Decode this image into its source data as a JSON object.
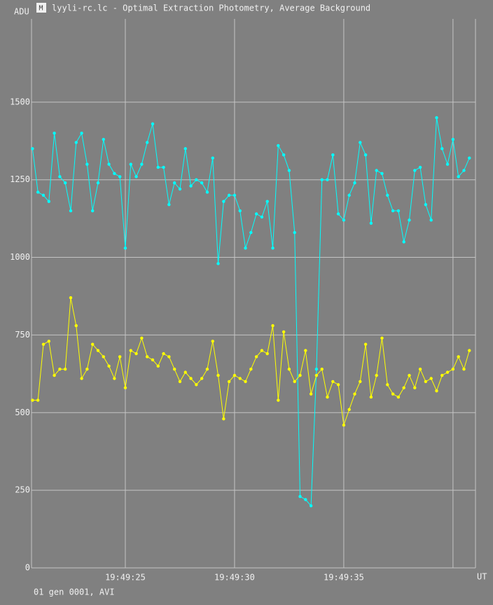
{
  "chart_data": {
    "type": "line",
    "title": "lyyli-rc.lc - Optimal Extraction Photometry, Average Background",
    "y_label": "ADU",
    "x_label": "UT",
    "footer": "01 gen 0001, AVI",
    "x": [
      20.75,
      21,
      21.25,
      21.5,
      21.75,
      22,
      22.25,
      22.5,
      22.75,
      23,
      23.25,
      23.5,
      23.75,
      24,
      24.25,
      24.5,
      24.75,
      25,
      25.25,
      25.5,
      25.75,
      26,
      26.25,
      26.5,
      26.75,
      27,
      27.25,
      27.5,
      27.75,
      28,
      28.25,
      28.5,
      28.75,
      29,
      29.25,
      29.5,
      29.75,
      30,
      30.25,
      30.5,
      30.75,
      31,
      31.25,
      31.5,
      31.75,
      32,
      32.25,
      32.5,
      32.75,
      33,
      33.25,
      33.5,
      33.75,
      34,
      34.25,
      34.5,
      34.75,
      35,
      35.25,
      35.5,
      35.75,
      36,
      36.25,
      36.5,
      36.75,
      37,
      37.25,
      37.5,
      37.75,
      38,
      38.25,
      38.5,
      38.75,
      39,
      39.25,
      39.5,
      39.75,
      40,
      40.25,
      40.5,
      40.75
    ],
    "series": [
      {
        "name": "cyan",
        "color": "#00ffff",
        "values": [
          1350,
          1210,
          1200,
          1180,
          1400,
          1260,
          1240,
          1150,
          1370,
          1400,
          1300,
          1150,
          1240,
          1380,
          1300,
          1270,
          1260,
          1030,
          1300,
          1260,
          1300,
          1370,
          1430,
          1290,
          1290,
          1170,
          1240,
          1220,
          1350,
          1230,
          1250,
          1240,
          1210,
          1320,
          980,
          1180,
          1200,
          1200,
          1150,
          1030,
          1080,
          1140,
          1130,
          1180,
          1030,
          1360,
          1330,
          1280,
          1080,
          230,
          220,
          200,
          640,
          1250,
          1250,
          1330,
          1140,
          1120,
          1200,
          1240,
          1370,
          1330,
          1110,
          1280,
          1270,
          1200,
          1150,
          1150,
          1050,
          1120,
          1280,
          1290,
          1170,
          1120,
          1450,
          1350,
          1300,
          1380,
          1260,
          1280,
          1320
        ]
      },
      {
        "name": "yellow",
        "color": "#ffff00",
        "values": [
          540,
          540,
          720,
          730,
          620,
          640,
          640,
          870,
          780,
          610,
          640,
          720,
          700,
          680,
          650,
          610,
          680,
          580,
          700,
          690,
          740,
          680,
          670,
          650,
          690,
          680,
          640,
          600,
          630,
          610,
          590,
          610,
          640,
          730,
          620,
          480,
          600,
          620,
          610,
          600,
          640,
          680,
          700,
          690,
          780,
          540,
          760,
          640,
          600,
          620,
          700,
          560,
          620,
          640,
          550,
          600,
          590,
          460,
          510,
          560,
          600,
          720,
          550,
          620,
          740,
          590,
          560,
          550,
          580,
          620,
          580,
          640,
          600,
          610,
          570,
          620,
          630,
          640,
          680,
          640,
          700
        ]
      }
    ],
    "xlim": [
      20.705,
      41.03
    ],
    "xticks": [
      {
        "value": 25,
        "label": "19:49:25"
      },
      {
        "value": 30,
        "label": "19:49:30"
      },
      {
        "value": 35,
        "label": "19:49:35"
      },
      {
        "value": 40,
        "label": null
      }
    ],
    "ylim": [
      0,
      1768
    ],
    "yticks": [
      0,
      250,
      500,
      750,
      1000,
      1250,
      1500
    ],
    "grid": true
  }
}
